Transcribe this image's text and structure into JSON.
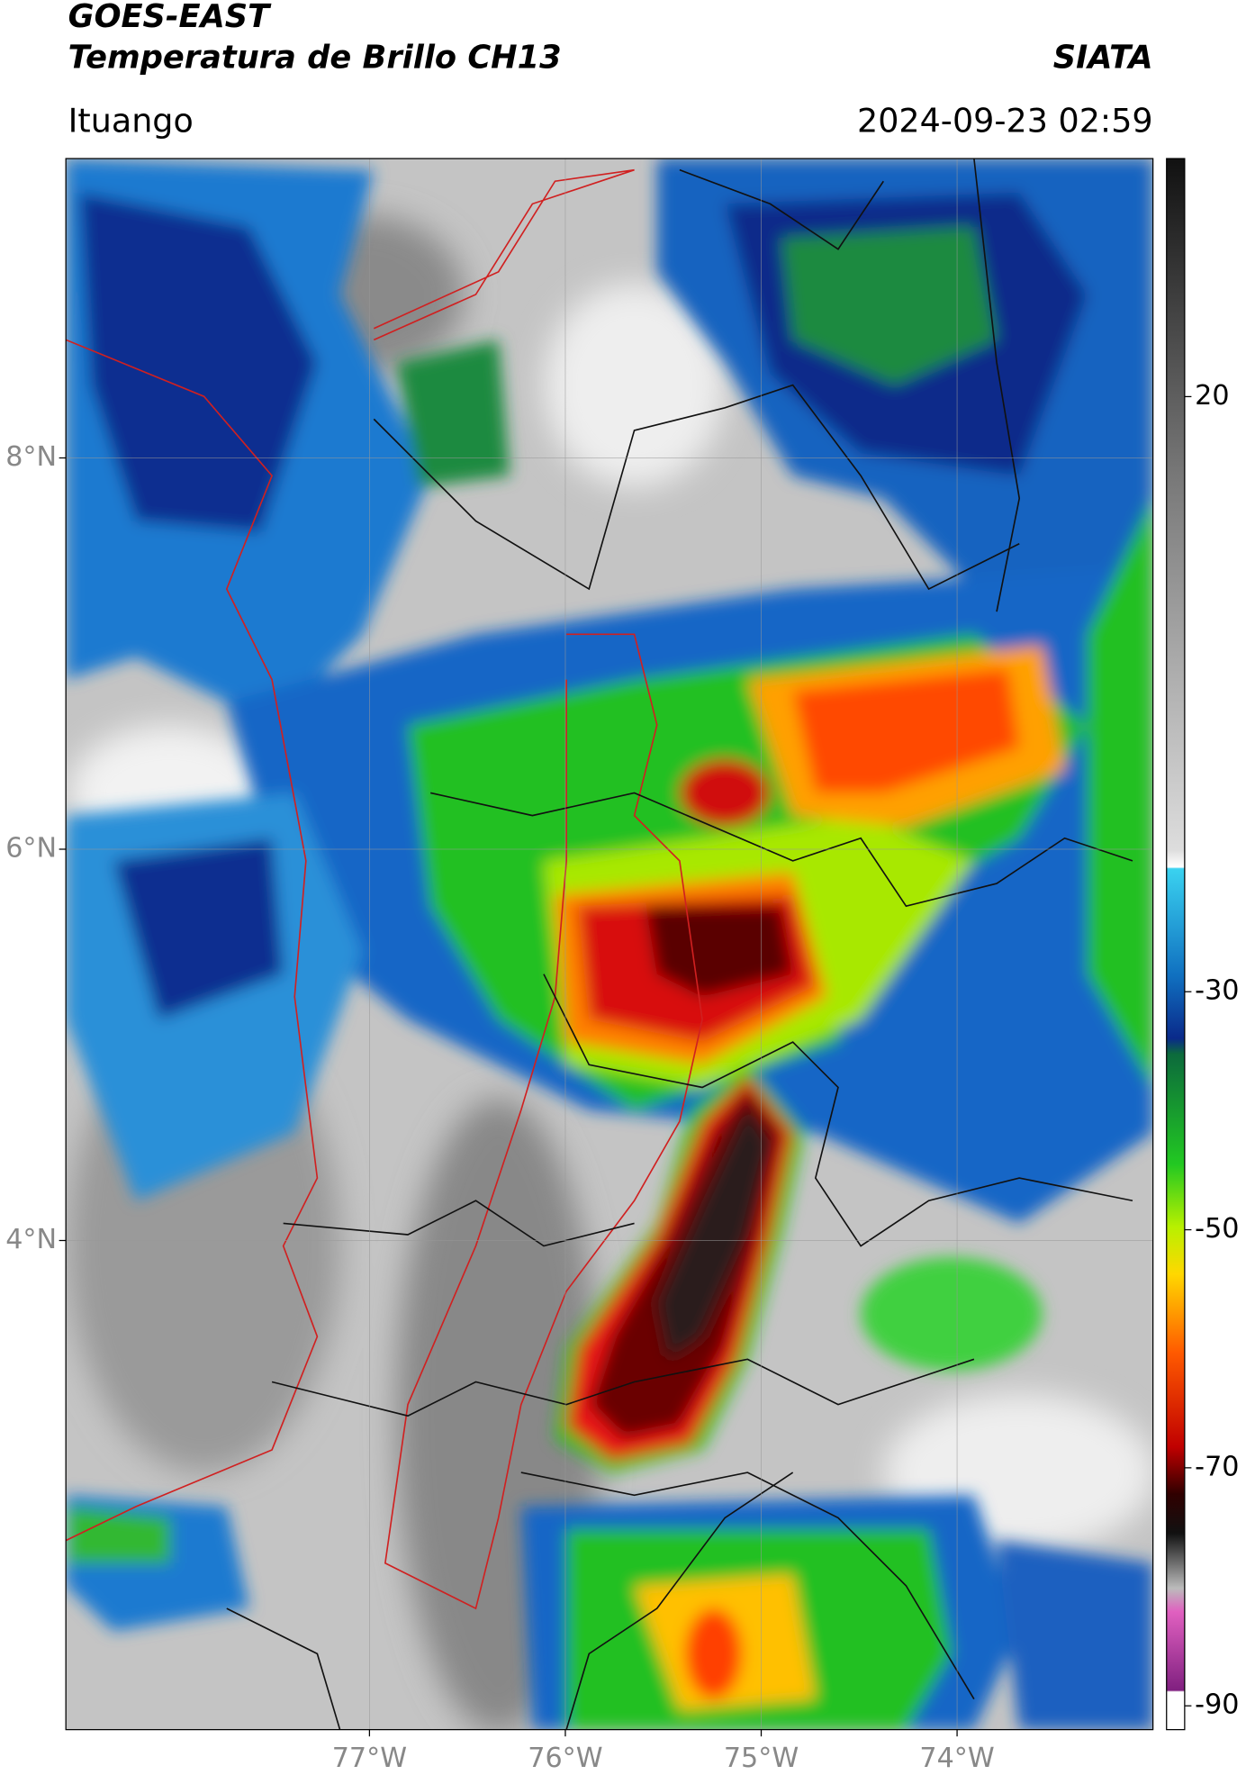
{
  "header": {
    "title": "GOES-EAST",
    "subtitle": "Temperatura de Brillo CH13",
    "brand": "SIATA",
    "location": "Ituango",
    "datetime": "2024-09-23 02:59"
  },
  "map": {
    "xlim": [
      -78.55,
      -73.0
    ],
    "ylim": [
      1.5,
      9.53
    ],
    "xticks": [
      {
        "value": -77,
        "label": "77°W"
      },
      {
        "value": -76,
        "label": "76°W"
      },
      {
        "value": -75,
        "label": "75°W"
      },
      {
        "value": -74,
        "label": "74°W"
      }
    ],
    "yticks": [
      {
        "value": 8,
        "label": "8°N"
      },
      {
        "value": 6,
        "label": "6°N"
      },
      {
        "value": 4,
        "label": "4°N"
      }
    ]
  },
  "colorbar": {
    "lim": [
      -92,
      40
    ],
    "ticks": [
      20,
      -30,
      -50,
      -70,
      -90
    ]
  }
}
